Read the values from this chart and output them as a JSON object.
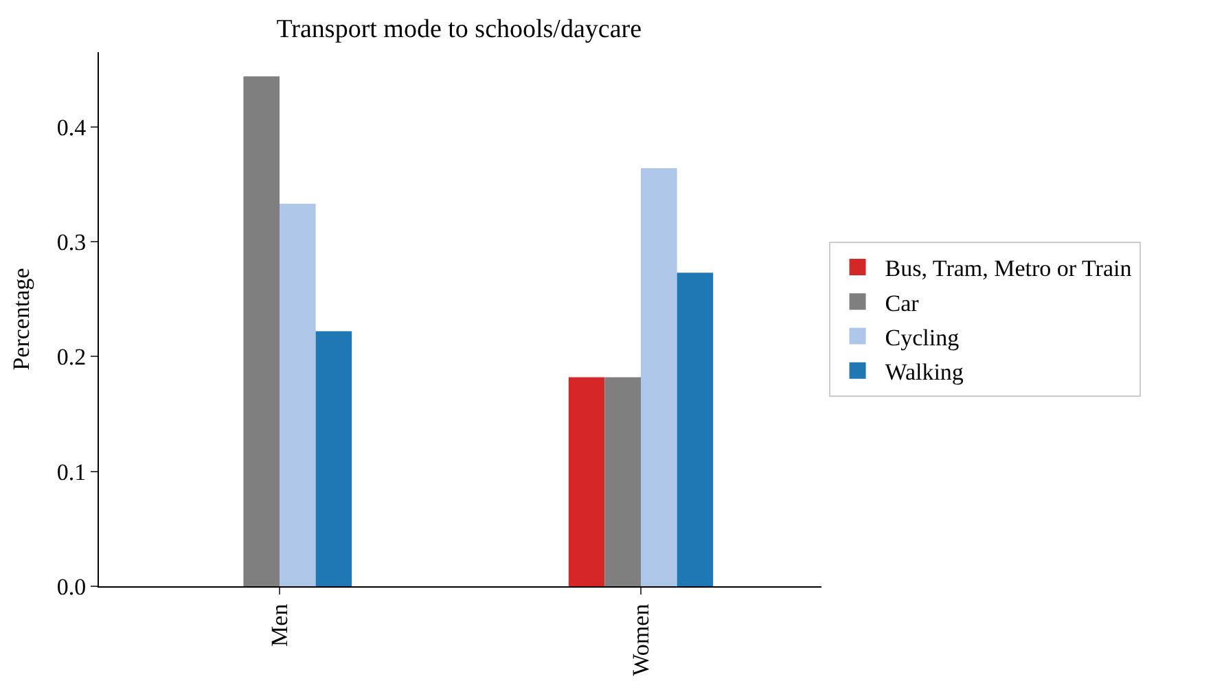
{
  "chart_data": {
    "type": "bar",
    "title": "Transport mode to schools/daycare",
    "ylabel": "Percentage",
    "categories": [
      "Men",
      "Women"
    ],
    "series": [
      {
        "name": "Bus, Tram, Metro or Train",
        "color": "#d62728",
        "values": [
          0,
          0.182
        ]
      },
      {
        "name": "Car",
        "color": "#7f7f7f",
        "values": [
          0.444,
          0.182
        ]
      },
      {
        "name": "Cycling",
        "color": "#aec7e8",
        "values": [
          0.333,
          0.364
        ]
      },
      {
        "name": "Walking",
        "color": "#1f77b4",
        "values": [
          0.222,
          0.273
        ]
      }
    ],
    "ylim": [
      0,
      0.465
    ],
    "yticks": [
      {
        "value": 0,
        "label": "0.0"
      },
      0.1,
      0.2,
      0.3,
      0.4
    ],
    "legend": "right"
  }
}
